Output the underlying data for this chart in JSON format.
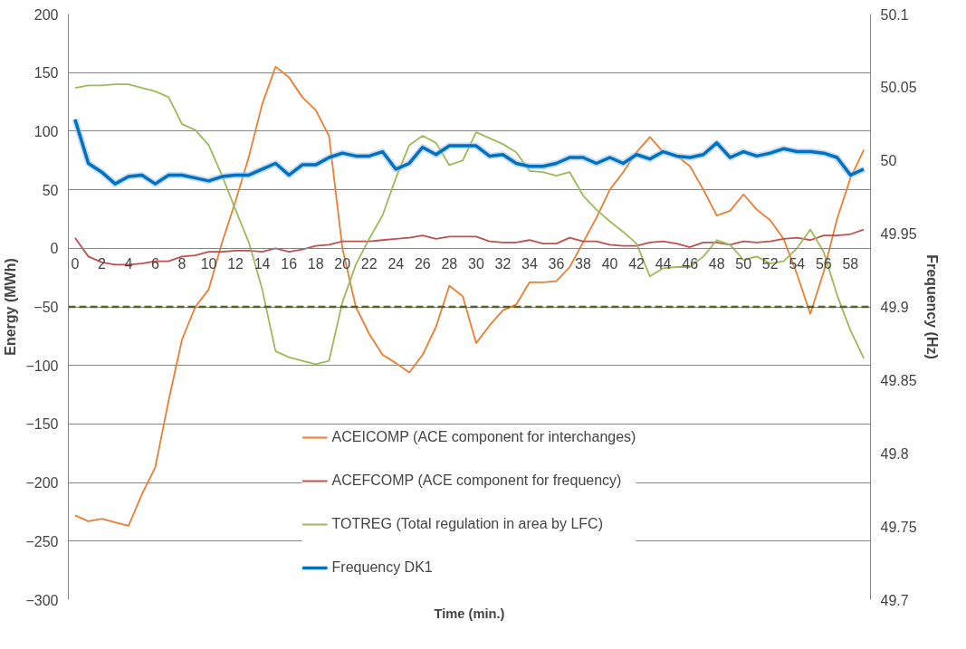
{
  "chart_data": {
    "type": "line",
    "xlabel": "Time (min.)",
    "ylabel": "Energy (MWh)",
    "y2label": "Frequency (Hz)",
    "x": [
      0,
      1,
      2,
      3,
      4,
      5,
      6,
      7,
      8,
      9,
      10,
      11,
      12,
      13,
      14,
      15,
      16,
      17,
      18,
      19,
      20,
      21,
      22,
      23,
      24,
      25,
      26,
      27,
      28,
      29,
      30,
      31,
      32,
      33,
      34,
      35,
      36,
      37,
      38,
      39,
      40,
      41,
      42,
      43,
      44,
      45,
      46,
      47,
      48,
      49,
      50,
      51,
      52,
      53,
      54,
      55,
      56,
      57,
      58,
      59
    ],
    "xlim": [
      -0.5,
      59.5
    ],
    "xticks": [
      0,
      2,
      4,
      6,
      8,
      10,
      12,
      14,
      16,
      18,
      20,
      22,
      24,
      26,
      28,
      30,
      32,
      34,
      36,
      38,
      40,
      42,
      44,
      46,
      48,
      50,
      52,
      54,
      56,
      58
    ],
    "ylim": [
      -300,
      200
    ],
    "yticks": [
      -300,
      -250,
      -200,
      -150,
      -100,
      -50,
      0,
      50,
      100,
      150,
      200
    ],
    "y2lim": [
      49.7,
      50.1
    ],
    "y2ticks": [
      {
        "value": 49.7,
        "label": "49.7"
      },
      {
        "value": 49.75,
        "label": "49.75"
      },
      {
        "value": 49.8,
        "label": "49.8"
      },
      {
        "value": 49.85,
        "label": "49.85"
      },
      {
        "value": 49.9,
        "label": "49.9"
      },
      {
        "value": 49.95,
        "label": "49.95"
      },
      {
        "value": 50.0,
        "label": "50"
      },
      {
        "value": 50.05,
        "label": "50.05"
      },
      {
        "value": 50.1,
        "label": "50.1"
      }
    ],
    "grid": "y",
    "legend": "bottom",
    "line_style": "solid",
    "marker": "none",
    "ref_lines": [
      {
        "axis": "y",
        "value": -50,
        "label": null,
        "color": "#4f6228",
        "line_style": "dashed"
      }
    ],
    "series": [
      {
        "name": "ACEICOMP (ACE component for interchanges)",
        "color": "#ed7d31",
        "values": [
          -228,
          -233,
          -231,
          -234,
          -237,
          -210,
          -187,
          -130,
          -78,
          -50,
          -35,
          5,
          40,
          78,
          123,
          155,
          146,
          129,
          118,
          96,
          0,
          -50,
          -73,
          -91,
          -98,
          -106,
          -91,
          -67,
          -32,
          -41,
          -81,
          -66,
          -53,
          -48,
          -29,
          -29,
          -28,
          -16,
          5,
          26,
          50,
          65,
          82,
          95,
          82,
          79,
          70,
          50,
          28,
          32,
          46,
          33,
          24,
          8,
          -22,
          -56,
          -20,
          25,
          60,
          84
        ]
      },
      {
        "name": "ACEFCOMP (ACE component for frequency)",
        "color": "#c0504d",
        "values": [
          9,
          -7,
          -12,
          -14,
          -14,
          -13,
          -11,
          -11,
          -7,
          -6,
          -3,
          -3,
          -2,
          -2,
          -3,
          0,
          -3,
          -1,
          2,
          3,
          6,
          6,
          6,
          7,
          8,
          9,
          11,
          8,
          10,
          10,
          10,
          6,
          5,
          5,
          7,
          4,
          4,
          9,
          6,
          6,
          3,
          2,
          2,
          5,
          6,
          4,
          1,
          5,
          5,
          3,
          6,
          5,
          6,
          8,
          9,
          7,
          11,
          11,
          12,
          16
        ]
      },
      {
        "name": "TOTREG (Total regulation in area by LFC)",
        "color": "#9bbb59",
        "values": [
          137,
          139,
          139,
          140,
          140,
          137,
          134,
          129,
          106,
          101,
          88,
          62,
          33,
          5,
          -35,
          -88,
          -93,
          -96,
          -99,
          -96,
          -46,
          -14,
          8,
          28,
          60,
          88,
          96,
          90,
          71,
          75,
          99,
          94,
          89,
          82,
          66,
          65,
          62,
          65,
          45,
          33,
          23,
          14,
          4,
          -24,
          -17,
          -16,
          -16,
          -7,
          7,
          3,
          -10,
          -7,
          -13,
          -11,
          0,
          16,
          -3,
          -40,
          -70,
          -94
        ]
      },
      {
        "name": "Frequency DK1",
        "color": "#0070c0",
        "axis": "y2",
        "values": [
          50.028,
          49.998,
          49.992,
          49.984,
          49.989,
          49.99,
          49.984,
          49.99,
          49.99,
          49.988,
          49.986,
          49.989,
          49.99,
          49.99,
          49.994,
          49.998,
          49.99,
          49.997,
          49.997,
          50.002,
          50.005,
          50.003,
          50.003,
          50.006,
          49.994,
          49.998,
          50.009,
          50.004,
          50.01,
          50.01,
          50.01,
          50.003,
          50.004,
          49.998,
          49.996,
          49.996,
          49.998,
          50.002,
          50.002,
          49.998,
          50.002,
          49.998,
          50.004,
          50.001,
          50.006,
          50.003,
          50.002,
          50.004,
          50.012,
          50.002,
          50.006,
          50.003,
          50.005,
          50.008,
          50.006,
          50.006,
          50.005,
          50.002,
          49.99,
          49.994
        ]
      }
    ]
  }
}
